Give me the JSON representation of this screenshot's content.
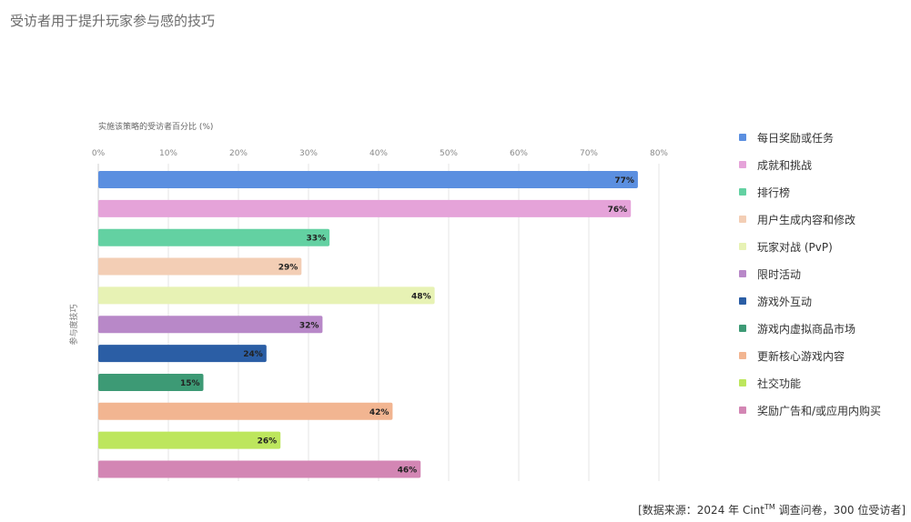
{
  "title": "受访者用于提升玩家参与感的技巧",
  "source": {
    "prefix": "[数据来源：2024 年 Cint",
    "tm": "TM",
    "suffix": " 调查问卷，300 位受访者]"
  },
  "chart_data": {
    "type": "bar",
    "orientation": "horizontal",
    "xlabel": "实施该策略的受访者百分比 (%)",
    "ylabel": "参与度技巧",
    "xlim": [
      0,
      80
    ],
    "xticks": [
      "0%",
      "10%",
      "20%",
      "30%",
      "40%",
      "50%",
      "60%",
      "70%",
      "80%"
    ],
    "grid": true,
    "legend_position": "right",
    "categories": [
      "每日奖励或任务",
      "成就和挑战",
      "排行榜",
      "用户生成内容和修改",
      "玩家对战 (PvP)",
      "限时活动",
      "游戏外互动",
      "游戏内虚拟商品市场",
      "更新核心游戏内容",
      "社交功能",
      "奖励广告和/或应用内购买"
    ],
    "values": [
      77,
      76,
      33,
      29,
      48,
      32,
      24,
      15,
      42,
      26,
      46
    ],
    "data_labels": [
      "77%",
      "76%",
      "33%",
      "29%",
      "48%",
      "32%",
      "24%",
      "15%",
      "42%",
      "26%",
      "46%"
    ],
    "colors": [
      "#5b8fe0",
      "#e5a3d9",
      "#63d1a2",
      "#f3ceb5",
      "#e7f2b4",
      "#b888c8",
      "#2b5ea5",
      "#3d9a75",
      "#f2b591",
      "#bde65d",
      "#d386b4"
    ]
  }
}
